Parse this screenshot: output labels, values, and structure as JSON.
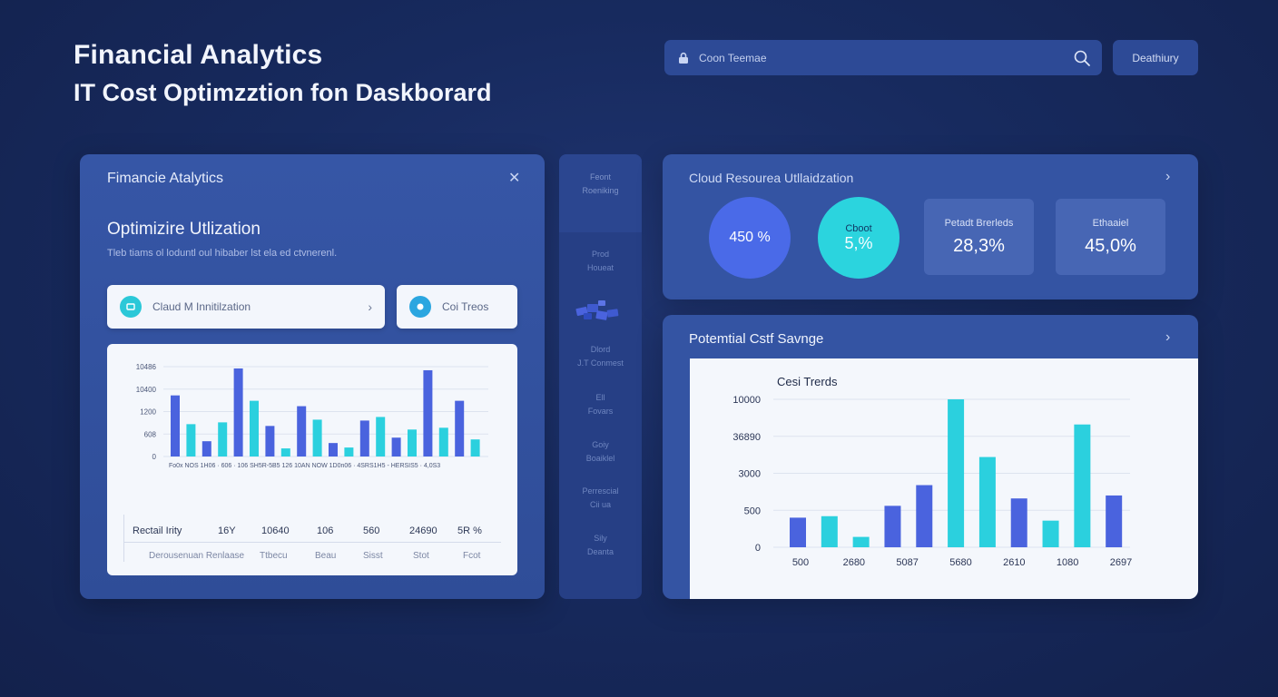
{
  "header": {
    "title": "Financial Analytics",
    "subtitle": "IT Cost Optimzztion fon Daskborard",
    "search_placeholder": "Coon Teemae",
    "dashboard_button": "Deathiury"
  },
  "left_panel": {
    "title": "Fimancie Atalytics",
    "heading": "Optimizire Utlization",
    "description": "Tleb tiams ol loduntl oul hibaber lst ela ed ctvnerenl.",
    "chips": [
      {
        "label": "Claud M Innitilzation",
        "icon_color": "#2bc8d8"
      },
      {
        "label": "Coi Treos",
        "icon_color": "#2ba6e0"
      }
    ],
    "table": {
      "row1": [
        "Rectail Irity",
        "16Y",
        "10640",
        "106",
        "560",
        "24690",
        "5R %"
      ],
      "row2": [
        "Derousenuan Renlaase",
        "Ttbecu",
        "Beau",
        "Sisst",
        "Stot",
        "Fcot"
      ]
    }
  },
  "left_chart": {
    "chart_data": {
      "type": "bar",
      "y_tick_labels": [
        "10486",
        "10400",
        "1200",
        "608",
        "0"
      ],
      "x_tick_labels": "Fo0x NOS 1H06 · 606 · 106 SH5R-5B5 126 10AN NOW 1D0n06 · 4SRS1H5 - HERSIS5 · 4,0S3",
      "series": [
        {
          "color": "#4a63de",
          "values": [
            68,
            17,
            98,
            34,
            56,
            15,
            40,
            21,
            96,
            62
          ]
        },
        {
          "color": "#2bd0de",
          "values": [
            36,
            38,
            62,
            9,
            41,
            10,
            44,
            30,
            32,
            19
          ]
        }
      ],
      "y_range": [
        0,
        100
      ]
    }
  },
  "mid_strip": {
    "items": [
      "Feont",
      "Roeniking",
      "Prod",
      "Houeat",
      "Dlord",
      "J.T Conmest",
      "Ell",
      "Fovars",
      "Goiy",
      "Boaiklel",
      "Perrescial",
      "Cii ua",
      "Sily",
      "Deanta"
    ]
  },
  "right_top": {
    "title": "Cloud Resourea Utllaidzation",
    "circles": [
      {
        "label": "",
        "value": "450 %",
        "color": "#4a6ae8"
      },
      {
        "label": "Cboot",
        "value": "5,%",
        "color": "#2bd4de"
      }
    ],
    "cards": [
      {
        "label": "Petadt Brerleds",
        "value": "28,3%"
      },
      {
        "label": "Ethaaiel",
        "value": "45,0%"
      }
    ]
  },
  "right_bottom": {
    "title": "Potemtial Cstf Savnge",
    "chart_data": {
      "type": "bar",
      "title": "Cesi Trerds",
      "y_tick_labels": [
        "10000",
        "36890",
        "3000",
        "500",
        "0"
      ],
      "x_tick_labels": [
        "500",
        "2680",
        "5087",
        "5680",
        "2610",
        "1080",
        "2697"
      ],
      "series": [
        {
          "color": "#4a63de",
          "values": [
            20,
            28,
            42,
            33,
            35
          ]
        },
        {
          "color": "#2bd0de",
          "values": [
            21,
            7,
            100,
            61,
            18,
            83
          ]
        }
      ],
      "bar_order": [
        "b",
        "c",
        "c",
        "b",
        "b",
        "c",
        "c",
        "b",
        "c",
        "c",
        "b"
      ],
      "y_range": [
        0,
        100
      ]
    }
  }
}
